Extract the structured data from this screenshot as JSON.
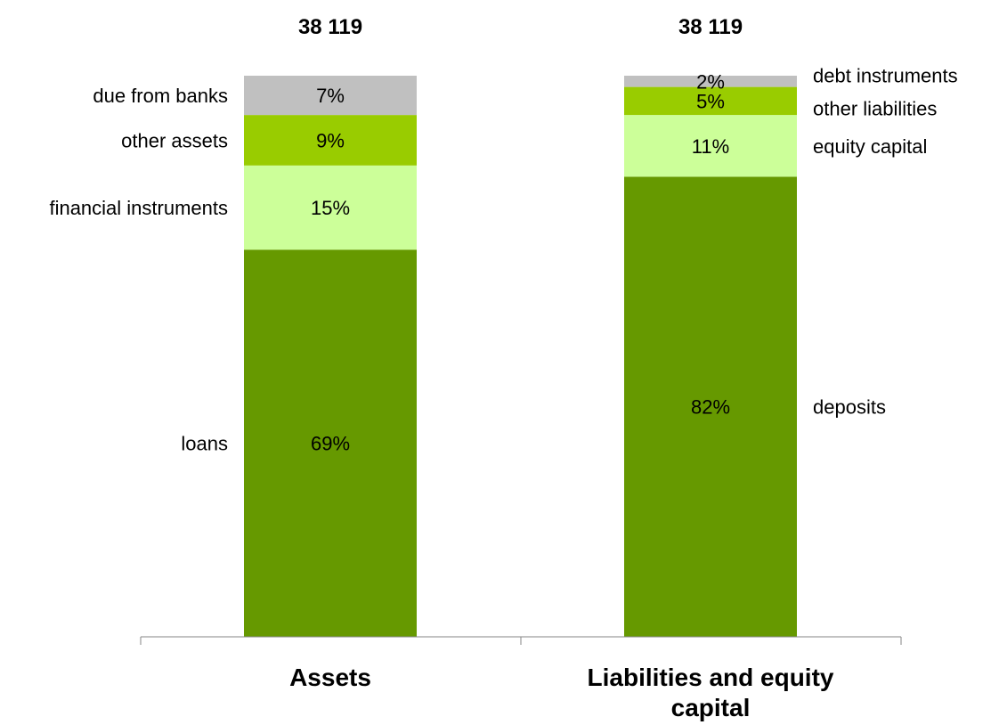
{
  "chart_data": {
    "type": "bar",
    "stacked": true,
    "percent": true,
    "title": "",
    "xlabel": "",
    "ylabel": "",
    "ylim": [
      0,
      100
    ],
    "grid": false,
    "legend": "none",
    "categories": [
      {
        "label_lines": [
          "Assets"
        ],
        "total_label": "38  119"
      },
      {
        "label_lines": [
          "Liabilities and equity",
          "capital"
        ],
        "total_label": "38 119"
      }
    ],
    "stacks": [
      {
        "category_index": 0,
        "label_side": "left",
        "segments": [
          {
            "name": "loans",
            "value": 69,
            "label": "69%",
            "color": "#669900"
          },
          {
            "name": "financial instruments",
            "value": 15,
            "label": "15%",
            "color": "#CCFF99"
          },
          {
            "name": "other assets",
            "value": 9,
            "label": "9%",
            "color": "#99CC00"
          },
          {
            "name": "due from banks",
            "value": 7,
            "label": "7%",
            "color": "#C0C0C0"
          }
        ]
      },
      {
        "category_index": 1,
        "label_side": "right",
        "segments": [
          {
            "name": "deposits",
            "value": 82,
            "label": "82%",
            "color": "#669900"
          },
          {
            "name": "equity capital",
            "value": 11,
            "label": "11%",
            "color": "#CCFF99"
          },
          {
            "name": "other liabilities",
            "value": 5,
            "label": "5%",
            "color": "#99CC00"
          },
          {
            "name": "debt instruments",
            "value": 2,
            "label": "2%",
            "color": "#C0C0C0"
          }
        ]
      }
    ]
  }
}
